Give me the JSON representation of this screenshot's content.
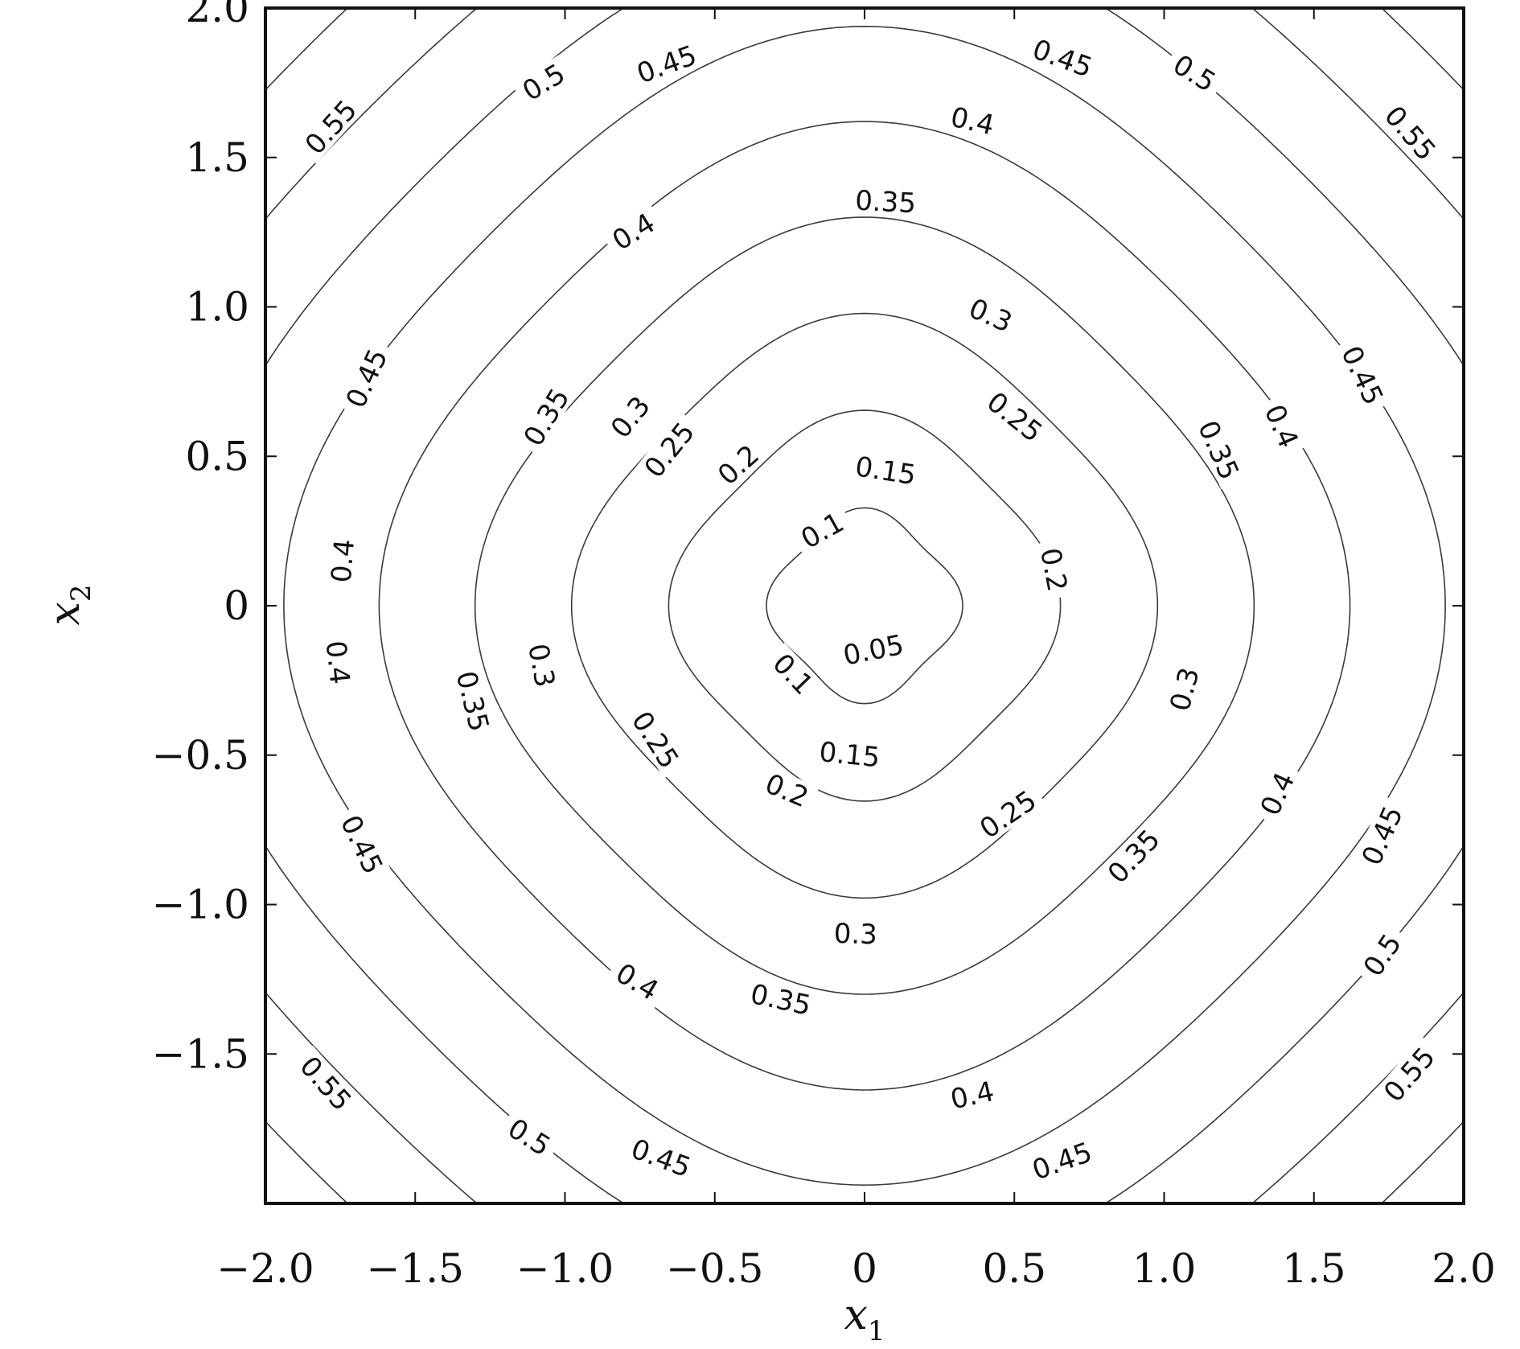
{
  "chart_data": {
    "type": "contour",
    "title": "",
    "xlabel": "x",
    "xlabel_sub": "1",
    "ylabel": "x",
    "ylabel_sub": "2",
    "xlim": [
      -2.0,
      2.0
    ],
    "ylim": [
      -2.0,
      2.0
    ],
    "grid": false,
    "x_ticks": [
      {
        "value": -2.0,
        "label": "−2.0"
      },
      {
        "value": -1.5,
        "label": "−1.5"
      },
      {
        "value": -1.0,
        "label": "−1.0"
      },
      {
        "value": -0.5,
        "label": "−0.5"
      },
      {
        "value": 0,
        "label": "0"
      },
      {
        "value": 0.5,
        "label": "0.5"
      },
      {
        "value": 1.0,
        "label": "1.0"
      },
      {
        "value": 1.5,
        "label": "1.5"
      },
      {
        "value": 2.0,
        "label": "2.0"
      }
    ],
    "y_ticks": [
      {
        "value": 2.0,
        "label": "2.0"
      },
      {
        "value": 1.5,
        "label": "1.5"
      },
      {
        "value": 1.0,
        "label": "1.0"
      },
      {
        "value": 0.5,
        "label": "0.5"
      },
      {
        "value": 0,
        "label": "0"
      },
      {
        "value": -0.5,
        "label": "−0.5"
      },
      {
        "value": -1.0,
        "label": "−1.0"
      },
      {
        "value": -1.5,
        "label": "−1.5"
      }
    ],
    "levels": [
      {
        "value": 0.05,
        "label": "0.05"
      },
      {
        "value": 0.1,
        "label": "0.1"
      },
      {
        "value": 0.15,
        "label": "0.15"
      },
      {
        "value": 0.2,
        "label": "0.2"
      },
      {
        "value": 0.25,
        "label": "0.25"
      },
      {
        "value": 0.3,
        "label": "0.3"
      },
      {
        "value": 0.35,
        "label": "0.35"
      },
      {
        "value": 0.4,
        "label": "0.4"
      },
      {
        "value": 0.45,
        "label": "0.45"
      },
      {
        "value": 0.5,
        "label": "0.5"
      },
      {
        "value": 0.55,
        "label": "0.55"
      }
    ],
    "contour_labels": [
      {
        "text": "0.05",
        "x": 0.03,
        "y": -0.15
      },
      {
        "text": "0.1",
        "x": -0.14,
        "y": 0.25
      },
      {
        "text": "0.1",
        "x": -0.24,
        "y": -0.23
      },
      {
        "text": "0.15",
        "x": 0.07,
        "y": 0.45
      },
      {
        "text": "0.15",
        "x": -0.05,
        "y": -0.5
      },
      {
        "text": "0.2",
        "x": -0.42,
        "y": 0.47
      },
      {
        "text": "0.2",
        "x": 0.63,
        "y": 0.12
      },
      {
        "text": "0.2",
        "x": -0.26,
        "y": -0.62
      },
      {
        "text": "0.25",
        "x": -0.65,
        "y": 0.52
      },
      {
        "text": "0.25",
        "x": 0.5,
        "y": 0.63
      },
      {
        "text": "0.25",
        "x": -0.7,
        "y": -0.45
      },
      {
        "text": "0.25",
        "x": 0.48,
        "y": -0.7
      },
      {
        "text": "0.3",
        "x": -0.78,
        "y": 0.63
      },
      {
        "text": "0.3",
        "x": 0.42,
        "y": 0.97
      },
      {
        "text": "0.3",
        "x": -1.08,
        "y": -0.2
      },
      {
        "text": "0.3",
        "x": 1.07,
        "y": -0.28
      },
      {
        "text": "0.3",
        "x": -0.03,
        "y": -1.1
      },
      {
        "text": "0.35",
        "x": 0.07,
        "y": 1.35
      },
      {
        "text": "0.35",
        "x": -1.06,
        "y": 0.63
      },
      {
        "text": "0.35",
        "x": 1.18,
        "y": 0.52
      },
      {
        "text": "0.35",
        "x": -1.31,
        "y": -0.32
      },
      {
        "text": "0.35",
        "x": 0.9,
        "y": -0.84
      },
      {
        "text": "0.35",
        "x": -0.28,
        "y": -1.32
      },
      {
        "text": "0.4",
        "x": 0.36,
        "y": 1.62
      },
      {
        "text": "0.4",
        "x": -0.77,
        "y": 1.25
      },
      {
        "text": "0.4",
        "x": 1.39,
        "y": 0.6
      },
      {
        "text": "0.4",
        "x": -1.74,
        "y": 0.15
      },
      {
        "text": "0.4",
        "x": -1.76,
        "y": -0.19
      },
      {
        "text": "0.4",
        "x": 1.38,
        "y": -0.63
      },
      {
        "text": "0.4",
        "x": -0.76,
        "y": -1.26
      },
      {
        "text": "0.4",
        "x": 0.36,
        "y": -1.64
      },
      {
        "text": "0.45",
        "x": -0.66,
        "y": 1.81
      },
      {
        "text": "0.45",
        "x": 0.66,
        "y": 1.83
      },
      {
        "text": "0.45",
        "x": -1.66,
        "y": 0.76
      },
      {
        "text": "0.45",
        "x": 1.66,
        "y": 0.77
      },
      {
        "text": "0.45",
        "x": -1.68,
        "y": -0.8
      },
      {
        "text": "0.45",
        "x": 1.73,
        "y": -0.77
      },
      {
        "text": "0.45",
        "x": -0.68,
        "y": -1.85
      },
      {
        "text": "0.45",
        "x": 0.66,
        "y": -1.86
      },
      {
        "text": "0.5",
        "x": -1.07,
        "y": 1.75
      },
      {
        "text": "0.5",
        "x": 1.1,
        "y": 1.78
      },
      {
        "text": "0.5",
        "x": 1.73,
        "y": -1.17
      },
      {
        "text": "0.5",
        "x": -1.12,
        "y": -1.78
      },
      {
        "text": "0.55",
        "x": -1.78,
        "y": 1.6
      },
      {
        "text": "0.55",
        "x": 1.82,
        "y": 1.58
      },
      {
        "text": "0.55",
        "x": -1.8,
        "y": -1.6
      },
      {
        "text": "0.55",
        "x": 1.82,
        "y": -1.57
      }
    ]
  }
}
